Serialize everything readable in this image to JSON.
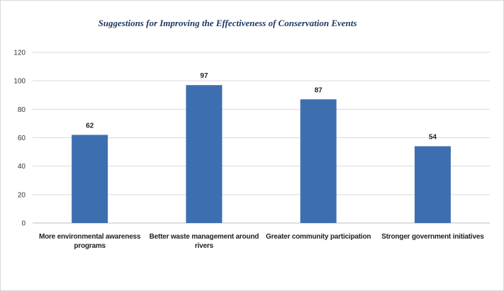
{
  "chart_data": {
    "type": "bar",
    "title": "Suggestions for Improving the Effectiveness of Conservation Events",
    "categories": [
      "More environmental awareness programs",
      "Better waste management around rivers",
      "Greater community participation",
      "Stronger government initiatives"
    ],
    "values": [
      62,
      97,
      87,
      54
    ],
    "ylim": [
      0,
      120
    ],
    "yticks": [
      "0",
      "20",
      "40",
      "60",
      "80",
      "100",
      "120"
    ],
    "grid": true,
    "bar_color": "#3d6fb0"
  }
}
